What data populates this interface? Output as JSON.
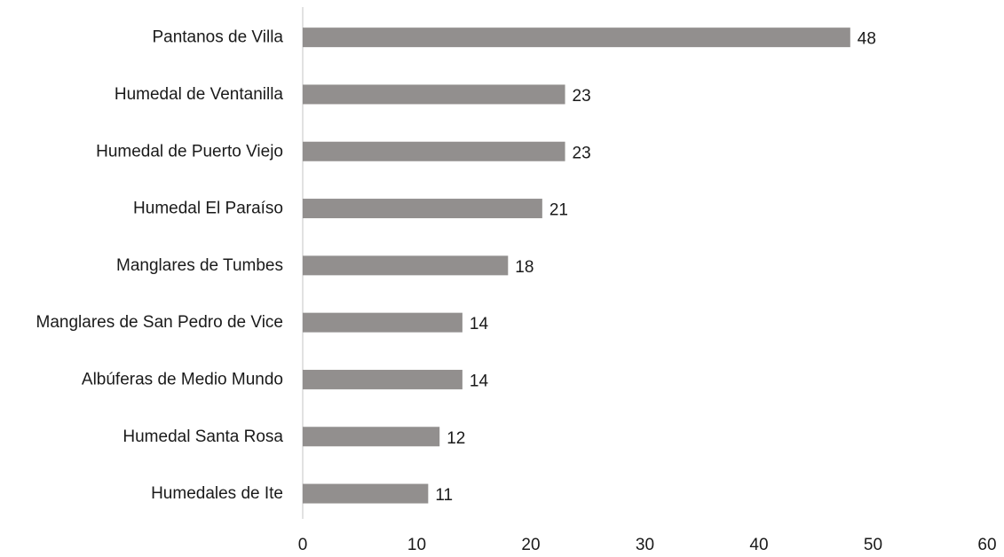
{
  "chart_data": {
    "type": "bar",
    "orientation": "horizontal",
    "categories": [
      "Pantanos de Villa",
      "Humedal de Ventanilla",
      "Humedal de Puerto Viejo",
      "Humedal El Paraíso",
      "Manglares de Tumbes",
      "Manglares de San Pedro de Vice",
      "Albúferas de Medio Mundo",
      "Humedal Santa Rosa",
      "Humedales de Ite"
    ],
    "values": [
      48,
      23,
      23,
      21,
      18,
      14,
      14,
      12,
      11
    ],
    "value_labels": [
      "48",
      "23",
      "23",
      "21",
      "18",
      "14",
      "14",
      "12",
      "11"
    ],
    "title": "",
    "xlabel": "",
    "ylabel": "",
    "xlim": [
      0,
      60
    ],
    "x_ticks": [
      "0",
      "10",
      "20",
      "30",
      "40",
      "50",
      "60"
    ],
    "grid": false,
    "legend": "none",
    "bar_color": "#928f8e",
    "axis_color": "#d9d9d9"
  }
}
